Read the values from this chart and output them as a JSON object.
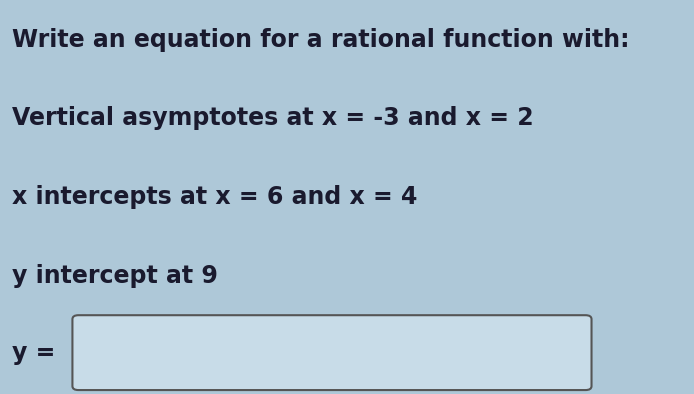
{
  "title_line": "Write an equation for a rational function with:",
  "line1": "Vertical asymptotes at x = -3 and x = 2",
  "line2": "x intercepts at x = 6 and x = 4",
  "line3": "y intercept at 9",
  "bottom_label": "y =",
  "background_color": "#aec8d8",
  "text_color": "#1a1a2e",
  "box_fill": "#c8dce8",
  "box_edge": "#555555",
  "font_size_title": 17,
  "font_size_body": 17,
  "font_size_label": 17
}
